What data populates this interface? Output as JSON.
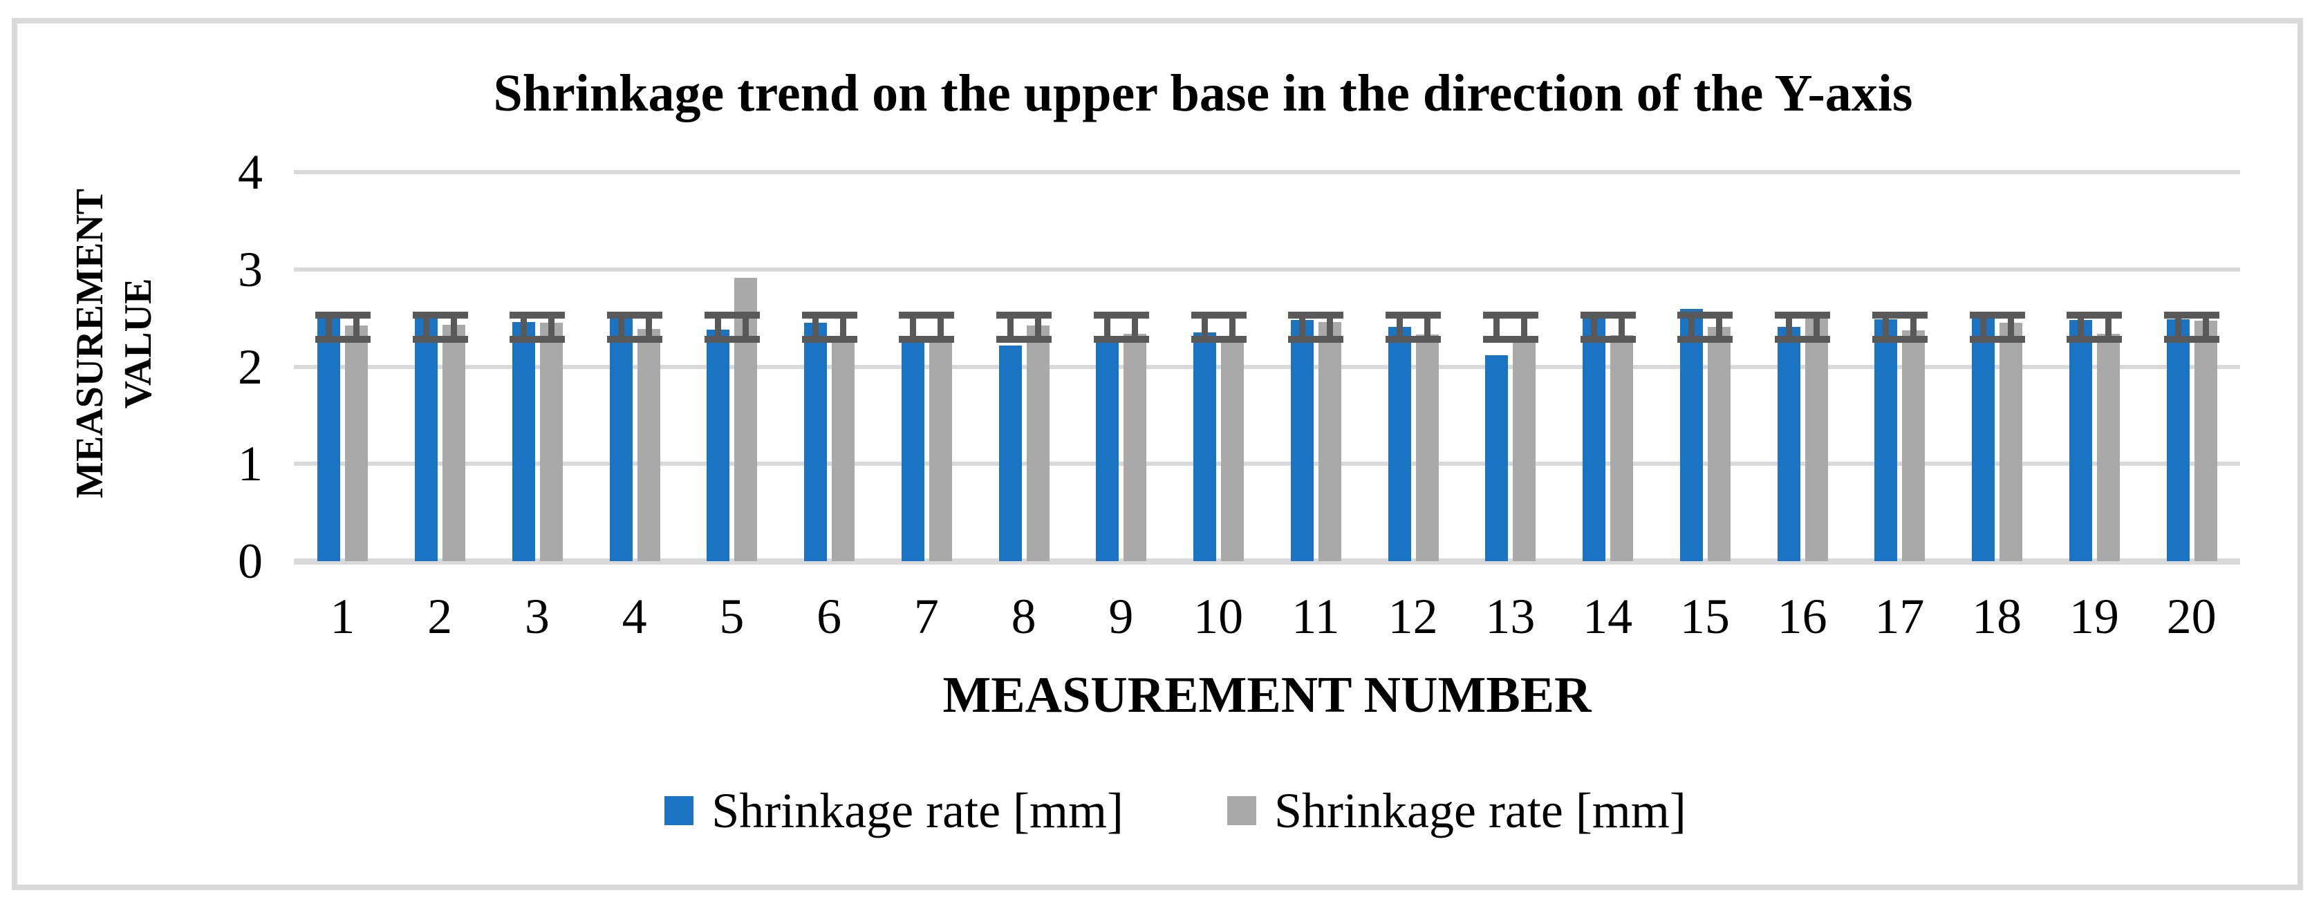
{
  "figure": {
    "background_color": "#FFFFFF",
    "border_color": "#D9D9D9"
  },
  "chart_data": {
    "type": "bar",
    "title": "Shrinkage trend on the upper base in the direction of the Y-axis",
    "xlabel": "MEASUREMENT NUMBER",
    "ylabel": "MEASUREMENT VALUE",
    "ylabel_lines": [
      "MEASUREMENT",
      "VALUE"
    ],
    "categories": [
      "1",
      "2",
      "3",
      "4",
      "5",
      "6",
      "7",
      "8",
      "9",
      "10",
      "11",
      "12",
      "13",
      "14",
      "15",
      "16",
      "17",
      "18",
      "19",
      "20"
    ],
    "yticks": [
      0,
      1,
      2,
      3,
      4
    ],
    "ylim": [
      0,
      4
    ],
    "grid": "horizontal gridlines at each integer tick",
    "gridline_color": "#D9D9D9",
    "legend_position": "bottom-center",
    "series": [
      {
        "name": "Shrinkage rate [mm]",
        "color": "#1B73C4",
        "values": [
          2.52,
          2.52,
          2.46,
          2.52,
          2.38,
          2.45,
          2.31,
          2.22,
          2.3,
          2.35,
          2.48,
          2.41,
          2.12,
          2.5,
          2.59,
          2.41,
          2.49,
          2.56,
          2.48,
          2.49
        ]
      },
      {
        "name": "Shrinkage rate [mm]",
        "color": "#A9A9A9",
        "values": [
          2.42,
          2.43,
          2.45,
          2.39,
          2.91,
          2.28,
          2.28,
          2.42,
          2.34,
          2.27,
          2.46,
          2.33,
          2.25,
          2.32,
          2.41,
          2.52,
          2.37,
          2.45,
          2.34,
          2.47
        ]
      }
    ],
    "error_bars": {
      "color": "#595959",
      "low": 2.28,
      "high": 2.53,
      "note": "identical fixed tolerance band drawn on every bar of both series"
    }
  }
}
